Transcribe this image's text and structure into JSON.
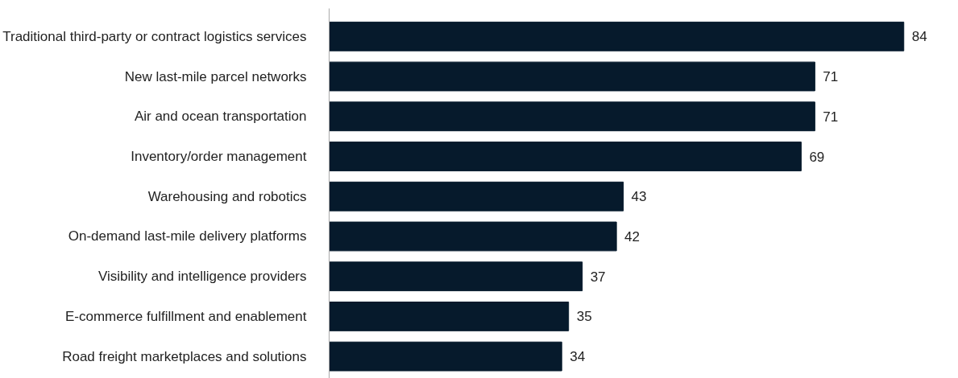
{
  "chart_data": {
    "type": "bar",
    "orientation": "horizontal",
    "categories": [
      "Traditional third-party or contract logistics services",
      "New last-mile parcel networks",
      "Air and ocean transportation",
      "Inventory/order management",
      "Warehousing and robotics",
      "On-demand last-mile delivery platforms",
      "Visibility and intelligence providers",
      "E-commerce fulfillment and enablement",
      "Road freight marketplaces and solutions"
    ],
    "values": [
      84,
      71,
      71,
      69,
      43,
      42,
      37,
      35,
      34
    ],
    "color": "#061a2c",
    "data_labels": true,
    "tick_labels": "y",
    "grid": false
  }
}
